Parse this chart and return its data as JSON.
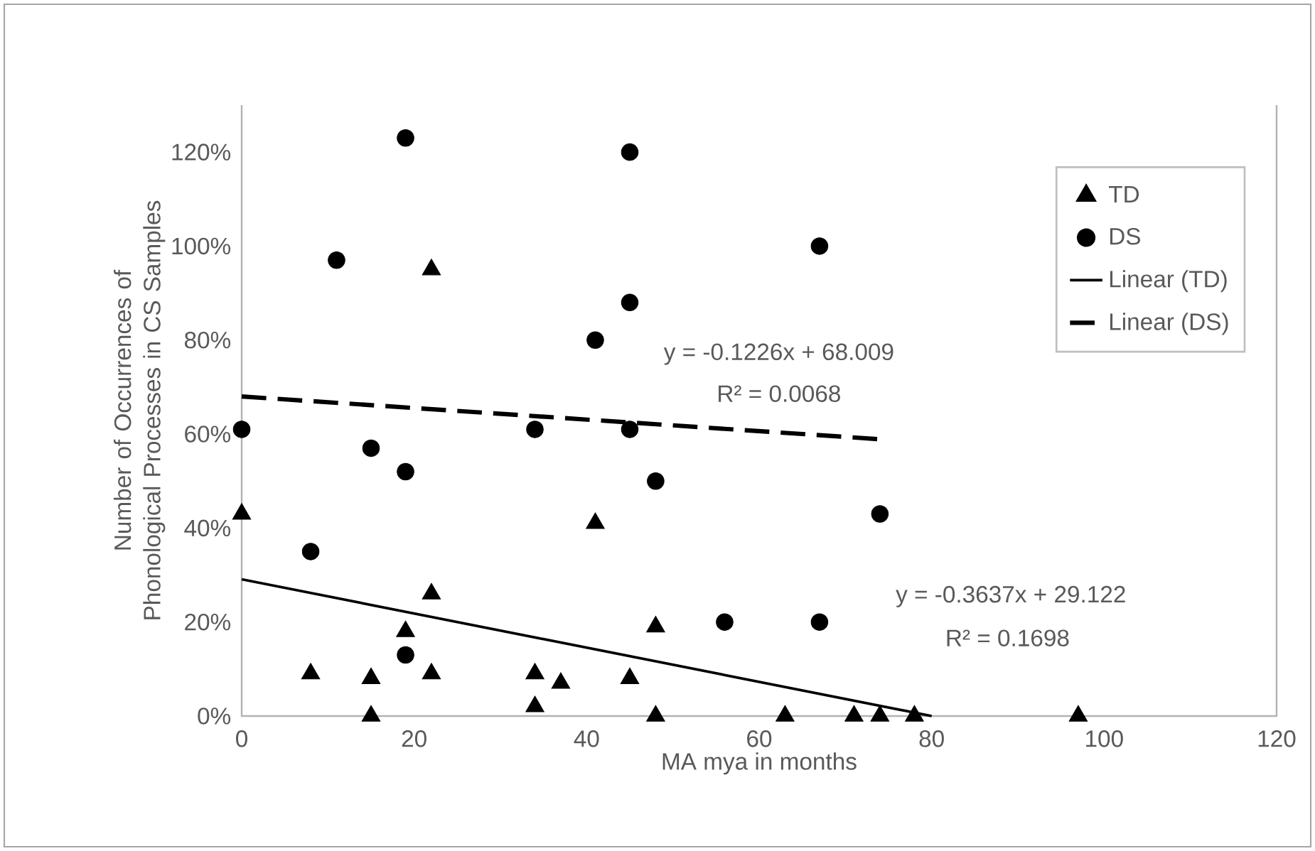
{
  "chart_data": {
    "type": "scatter",
    "xlabel": "MA mya in months",
    "ylabel": "Number of  Occurrences of Phonological Processes in CS Samples",
    "xlim": [
      0,
      120
    ],
    "xticks": [
      0,
      20,
      40,
      60,
      80,
      100,
      120
    ],
    "ylim": [
      0,
      130
    ],
    "yticks": [
      {
        "value": 0,
        "label": "0%"
      },
      {
        "value": 20,
        "label": "20%"
      },
      {
        "value": 40,
        "label": "40%"
      },
      {
        "value": 60,
        "label": "60%"
      },
      {
        "value": 80,
        "label": "80%"
      },
      {
        "value": 100,
        "label": "100%"
      },
      {
        "value": 120,
        "label": "120%"
      }
    ],
    "grid": false,
    "legend": "top right",
    "series": [
      {
        "name": "TD",
        "marker": "triangle",
        "color": "#000000",
        "x": [
          0,
          8,
          15,
          15,
          19,
          22,
          22,
          22,
          34,
          34,
          37,
          41,
          45,
          48,
          48,
          63,
          71,
          74,
          78,
          97
        ],
        "values": [
          43,
          9,
          8,
          0,
          18,
          95,
          26,
          9,
          9,
          2,
          7,
          41,
          8,
          19,
          0,
          0,
          0,
          0,
          0,
          0
        ]
      },
      {
        "name": "DS",
        "marker": "circle",
        "color": "#000000",
        "x": [
          0,
          8,
          11,
          15,
          19,
          19,
          19,
          34,
          41,
          45,
          45,
          45,
          48,
          56,
          67,
          67,
          74
        ],
        "values": [
          61,
          35,
          97,
          57,
          123,
          52,
          13,
          61,
          80,
          120,
          88,
          61,
          50,
          20,
          100,
          20,
          43
        ]
      },
      {
        "name": "Linear (TD)",
        "type": "line",
        "line_style": "solid",
        "color": "#000000",
        "x": [
          0,
          80
        ],
        "values": [
          29.1,
          0
        ]
      },
      {
        "name": "Linear (DS)",
        "type": "line",
        "line_style": "dashed",
        "color": "#000000",
        "x": [
          0,
          74
        ],
        "values": [
          68.0,
          58.9
        ]
      }
    ],
    "annotations": [
      "y = -0.1226x + 68.009",
      "R² = 0.0068",
      "y = -0.3637x + 29.122",
      "R² = 0.1698"
    ]
  }
}
